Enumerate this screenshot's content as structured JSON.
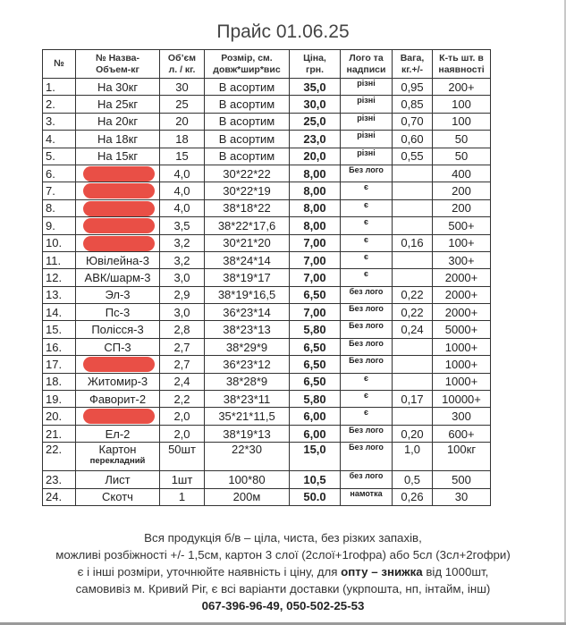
{
  "title": "Прайс 01.06.25",
  "columns": [
    "№",
    "№ Назва-\nОбъем-кг",
    "Об’єм\nл. / кг.",
    "Розмір, см.\nдовж*шир*вис",
    "Ціна,\nгрн.",
    "Лого та\nнадписи",
    "Вага,\nкг.+/-",
    "К-ть шт. в\nнаявності"
  ],
  "rows": [
    {
      "n": "1.",
      "name": "На 30кг",
      "vol": "30",
      "size": "В асортим",
      "price": "35,0",
      "logo": "різні",
      "weight": "0,95",
      "qty": "200+"
    },
    {
      "n": "2.",
      "name": "На 25кг",
      "vol": "25",
      "size": "В асортим",
      "price": "30,0",
      "logo": "різні",
      "weight": "0,85",
      "qty": "100"
    },
    {
      "n": "3.",
      "name": "На 20кг",
      "vol": "20",
      "size": "В асортим",
      "price": "25,0",
      "logo": "різні",
      "weight": "0,70",
      "qty": "100"
    },
    {
      "n": "4.",
      "name": "На 18кг",
      "vol": "18",
      "size": "В асортим",
      "price": "23,0",
      "logo": "різні",
      "weight": "0,60",
      "qty": "50"
    },
    {
      "n": "5.",
      "name": "На 15кг",
      "vol": "15",
      "size": "В асортим",
      "price": "20,0",
      "logo": "різні",
      "weight": "0,55",
      "qty": "50"
    },
    {
      "n": "6.",
      "name": "",
      "redacted": true,
      "vol": "4,0",
      "size": "30*22*22",
      "price": "8,00",
      "logo": "Без лого",
      "weight": "",
      "qty": "400"
    },
    {
      "n": "7.",
      "name": "",
      "redacted": true,
      "vol": "4,0",
      "size": "30*22*19",
      "price": "8,00",
      "logo": "є",
      "weight": "",
      "qty": "200"
    },
    {
      "n": "8.",
      "name": "",
      "redacted": true,
      "vol": "4,0",
      "size": "38*18*22",
      "price": "8,00",
      "logo": "є",
      "weight": "",
      "qty": "200"
    },
    {
      "n": "9.",
      "name": "",
      "redacted": true,
      "vol": "3,5",
      "size": "38*22*17,6",
      "price": "8,00",
      "logo": "є",
      "weight": "",
      "qty": "500+"
    },
    {
      "n": "10.",
      "name": "",
      "redacted": true,
      "vol": "3,2",
      "size": "30*21*20",
      "price": "7,00",
      "logo": "є",
      "weight": "0,16",
      "qty": "100+"
    },
    {
      "n": "11.",
      "name": "Ювілейна-3",
      "vol": "3,2",
      "size": "38*24*14",
      "price": "7,00",
      "logo": "є",
      "weight": "",
      "qty": "300+"
    },
    {
      "n": "12.",
      "name": "АВК/шарм-3",
      "vol": "3,0",
      "size": "38*19*17",
      "price": "7,00",
      "logo": "є",
      "weight": "",
      "qty": "2000+"
    },
    {
      "n": "13.",
      "name": "Эл-3",
      "vol": "2,9",
      "size": "38*19*16,5",
      "price": "6,50",
      "logo": "без лого",
      "weight": "0,22",
      "qty": "2000+"
    },
    {
      "n": "14.",
      "name": "Пс-3",
      "vol": "3,0",
      "size": "36*23*14",
      "price": "7,00",
      "logo": "Без лого",
      "weight": "0,22",
      "qty": "2000+"
    },
    {
      "n": "15.",
      "name": "Полісся-3",
      "vol": "2,8",
      "size": "38*23*13",
      "price": "5,80",
      "logo": "Без лого",
      "weight": "0,24",
      "qty": "5000+"
    },
    {
      "n": "16.",
      "name": "СП-3",
      "vol": "2,7",
      "size": "38*29*9",
      "price": "6,50",
      "logo": "Без лого",
      "weight": "",
      "qty": "1000+"
    },
    {
      "n": "17.",
      "name": "",
      "redacted": true,
      "vol": "2,7",
      "size": "36*23*12",
      "price": "6,50",
      "logo": "Без лого",
      "weight": "",
      "qty": "1000+"
    },
    {
      "n": "18.",
      "name": "Житомир-3",
      "vol": "2,4",
      "size": "38*28*9",
      "price": "6,50",
      "logo": "є",
      "weight": "",
      "qty": "1000+"
    },
    {
      "n": "19.",
      "name": "Фаворит-2",
      "vol": "2,2",
      "size": "38*23*11",
      "price": "5,80",
      "logo": "є",
      "weight": "0,17",
      "qty": "10000+"
    },
    {
      "n": "20.",
      "name": "",
      "redacted": true,
      "vol": "2,0",
      "size": "35*21*11,5",
      "price": "6,00",
      "logo": "є",
      "weight": "",
      "qty": "300"
    },
    {
      "n": "21.",
      "name": "Ел-2",
      "vol": "2,0",
      "size": "38*19*13",
      "price": "6,00",
      "logo": "Без лого",
      "weight": "0,20",
      "qty": "600+"
    },
    {
      "n": "22.",
      "name": "Картон",
      "name_sub": "перекладний",
      "vol": "50шт",
      "size": "22*30",
      "price": "15,0",
      "logo": "Без лого",
      "weight": "1,0",
      "qty": "100кг"
    },
    {
      "n": "23.",
      "name": "Лист",
      "vol": "1шт",
      "size": "100*80",
      "price": "10,5",
      "logo": "без лого",
      "weight": "0,5",
      "qty": "500"
    },
    {
      "n": "24.",
      "name": "Скотч",
      "vol": "1",
      "size": "200м",
      "price": "50.0",
      "logo": "намотка",
      "weight": "0,26",
      "qty": "30"
    }
  ],
  "footer": {
    "line1": "Вся продукція б/в – ціла, чиста, без різких запахів,",
    "line2": "можливі розбіжності +/- 1,5см, картон 3 слої (2слої+1гофра) або 5сл (3сл+2гофри)",
    "line3_a": "є і інші розміри, уточнюйте наявність і ціну, для ",
    "line3_bold": "опту – знижка",
    "line3_b": " від 1000шт,",
    "line4": "самовивіз м. Кривий Ріг, є всі варіанти доставки (укрпошта, нп, інтайм, інш)",
    "phones": "067-396-96-49, 050-502-25-53"
  },
  "colors": {
    "redaction": "#e8463c"
  }
}
